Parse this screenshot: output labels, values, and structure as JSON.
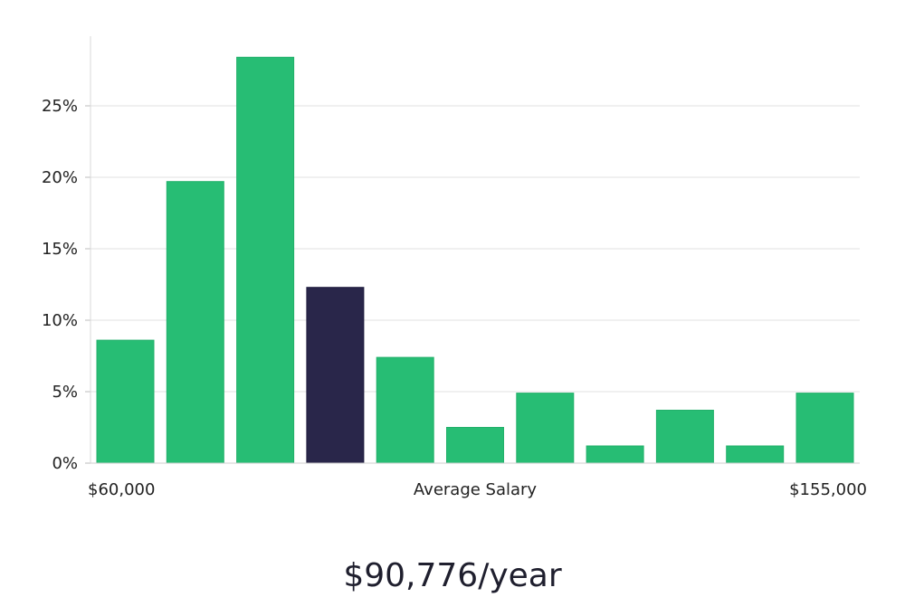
{
  "chart_data": {
    "type": "bar",
    "xlabel": "Average Salary",
    "x_min_label": "$60,000",
    "x_max_label": "$155,000",
    "ylim": [
      0,
      30
    ],
    "yticks": [
      0,
      5,
      10,
      15,
      20,
      25
    ],
    "ytick_labels": [
      "0%",
      "5%",
      "10%",
      "15%",
      "20%",
      "25%"
    ],
    "grid": true,
    "values": [
      8.6,
      19.7,
      28.4,
      12.3,
      7.4,
      2.5,
      4.9,
      1.2,
      3.7,
      1.2,
      4.9
    ],
    "highlight_index": 3,
    "colors": {
      "bar": "#27bd74",
      "highlight": "#29264a",
      "grid": "#e0e0e0",
      "axis": "#cfcfcf"
    }
  },
  "salary_summary": "$90,776/year"
}
